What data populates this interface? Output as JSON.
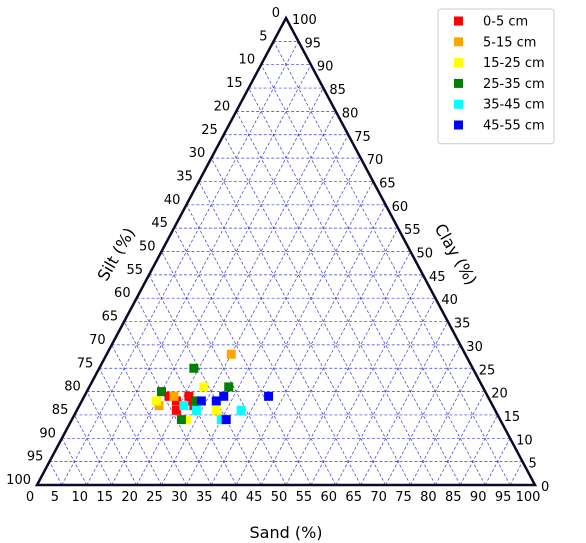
{
  "chart_data": {
    "type": "ternary-scatter",
    "axes": {
      "bottom": {
        "label": "Sand (%)",
        "range": [
          0,
          100
        ],
        "step": 5
      },
      "left": {
        "label": "Silt (%)",
        "range": [
          0,
          100
        ],
        "step": 5
      },
      "right": {
        "label": "Clay (%)",
        "range": [
          0,
          100
        ],
        "step": 5
      }
    },
    "grid": true,
    "legend_position": "top-right",
    "series": [
      {
        "name": "0-5 cm",
        "color": "#ff0000",
        "points": [
          {
            "sand": 21,
            "clay": 19
          },
          {
            "sand": 22,
            "clay": 18
          },
          {
            "sand": 20,
            "clay": 16
          },
          {
            "sand": 19,
            "clay": 18
          },
          {
            "sand": 23,
            "clay": 17
          },
          {
            "sand": 17,
            "clay": 19
          }
        ]
      },
      {
        "name": "5-15 cm",
        "color": "#ffa500",
        "points": [
          {
            "sand": 25,
            "clay": 28
          },
          {
            "sand": 18,
            "clay": 19
          },
          {
            "sand": 16,
            "clay": 17
          }
        ]
      },
      {
        "name": "15-25 cm",
        "color": "#ffff00",
        "points": [
          {
            "sand": 23,
            "clay": 21
          },
          {
            "sand": 15,
            "clay": 18
          },
          {
            "sand": 28,
            "clay": 16
          },
          {
            "sand": 23,
            "clay": 14
          }
        ]
      },
      {
        "name": "25-35 cm",
        "color": "#008000",
        "points": [
          {
            "sand": 19,
            "clay": 25
          },
          {
            "sand": 15,
            "clay": 20
          },
          {
            "sand": 28,
            "clay": 21
          },
          {
            "sand": 23,
            "clay": 18
          },
          {
            "sand": 22,
            "clay": 14
          }
        ]
      },
      {
        "name": "35-45 cm",
        "color": "#00ffff",
        "points": [
          {
            "sand": 24,
            "clay": 16
          },
          {
            "sand": 21,
            "clay": 17
          },
          {
            "sand": 33,
            "clay": 16
          },
          {
            "sand": 30,
            "clay": 14
          }
        ]
      },
      {
        "name": "45-55 cm",
        "color": "#0000ff",
        "points": [
          {
            "sand": 24,
            "clay": 18
          },
          {
            "sand": 27,
            "clay": 18
          },
          {
            "sand": 28,
            "clay": 19
          },
          {
            "sand": 37,
            "clay": 19
          },
          {
            "sand": 31,
            "clay": 14
          }
        ]
      }
    ]
  }
}
